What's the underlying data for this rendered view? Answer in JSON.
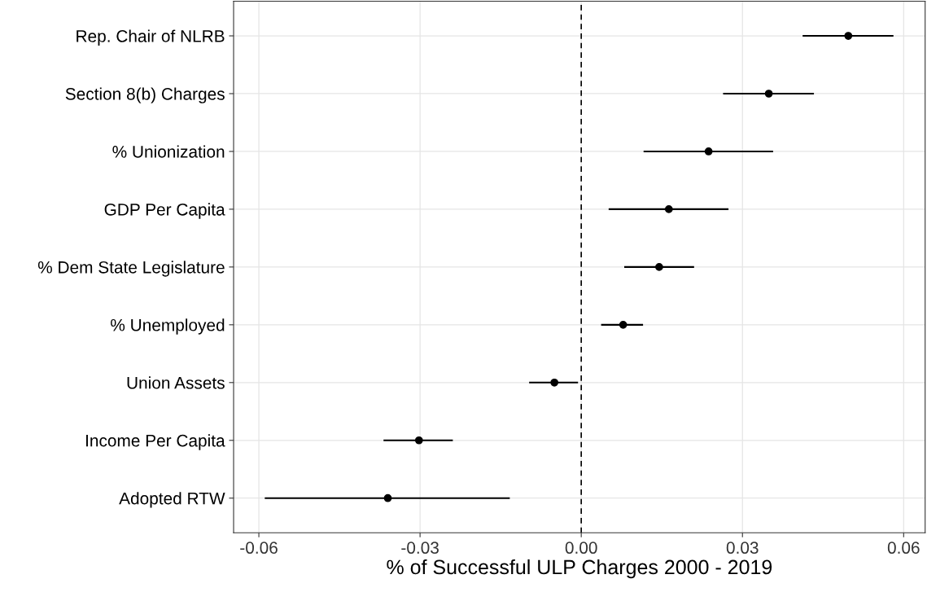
{
  "chart_data": {
    "type": "scatter",
    "orientation": "horizontal",
    "xlabel": "% of Successful ULP Charges 2000 - 2019",
    "categories": [
      "Rep. Chair of NLRB",
      "Section 8(b) Charges",
      "% Unionization",
      "GDP Per Capita",
      "% Dem State Legislature",
      "% Unemployed",
      "Union Assets",
      "Income Per Capita",
      "Adopted RTW"
    ],
    "series": [
      {
        "color": "#000000",
        "values": [
          0.0497,
          0.0349,
          0.0237,
          0.0163,
          0.0145,
          0.0078,
          -0.005,
          -0.0302,
          -0.036
        ],
        "errors": [
          [
            0.0412,
            0.0581
          ],
          [
            0.0264,
            0.0433
          ],
          [
            0.0116,
            0.0357
          ],
          [
            0.0051,
            0.0274
          ],
          [
            0.008,
            0.021
          ],
          [
            0.0037,
            0.0115
          ],
          [
            -0.0097,
            -0.0006
          ],
          [
            -0.0368,
            -0.0239
          ],
          [
            -0.0589,
            -0.0133
          ]
        ]
      }
    ],
    "xlim": [
      -0.0647,
      0.064
    ],
    "xticks": [
      {
        "value": -0.06,
        "label": "-0.06"
      },
      {
        "value": -0.03,
        "label": "-0.03"
      },
      {
        "value": 0,
        "label": "0.00"
      },
      {
        "value": 0.03,
        "label": "0.03"
      },
      {
        "value": 0.06,
        "label": "0.06"
      }
    ],
    "ref_lines": [
      {
        "axis": "x",
        "value": 0,
        "color": "#000000",
        "line_style": "dashed"
      }
    ],
    "grid": true,
    "marker": "circle",
    "legend": false
  }
}
